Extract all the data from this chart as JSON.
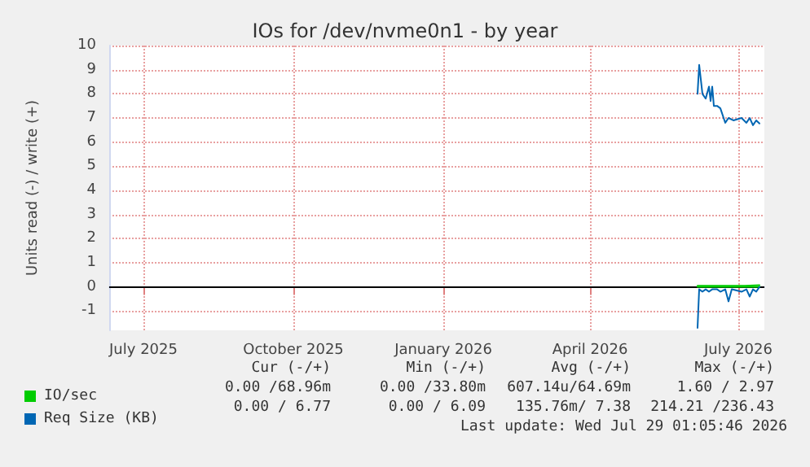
{
  "chart_data": {
    "type": "line",
    "title": "IOs for /dev/nvme0n1 - by year",
    "ylabel": "Units read (-) / write (+)",
    "xlim": [
      "2025-06-10",
      "2026-07-17"
    ],
    "xticks": [
      {
        "value": "2025-07-01",
        "label": "July 2025"
      },
      {
        "value": "2025-10-01",
        "label": "October 2025"
      },
      {
        "value": "2026-01-01",
        "label": "January 2026"
      },
      {
        "value": "2026-04-01",
        "label": "April 2026"
      },
      {
        "value": "2026-07-01",
        "label": "July 2026"
      }
    ],
    "ylim": [
      -1.8,
      10
    ],
    "yticks": [
      -1,
      0,
      1,
      2,
      3,
      4,
      5,
      6,
      7,
      8,
      9,
      10
    ],
    "grid": true,
    "legend": "bottom left",
    "marker": "none",
    "line_style": "solid",
    "ref_lines": [
      {
        "axis": "y",
        "value": 0,
        "color": "#000000"
      }
    ],
    "series": [
      {
        "name": "IO/sec",
        "color": "#00cc00",
        "x": [
          "2026-06-06",
          "2026-06-15",
          "2026-06-25",
          "2026-07-05",
          "2026-07-14"
        ],
        "values": [
          0.05,
          0.05,
          0.05,
          0.05,
          0.07
        ]
      },
      {
        "color": "#00cc00",
        "x": [
          "2026-06-06",
          "2026-06-15",
          "2026-06-25",
          "2026-07-05",
          "2026-07-14"
        ],
        "values": [
          0,
          0,
          0,
          0,
          0
        ]
      },
      {
        "name": "Req Size (KB)",
        "color": "#0066b3",
        "x": [
          "2026-06-06",
          "2026-06-07",
          "2026-06-09",
          "2026-06-11",
          "2026-06-13",
          "2026-06-14",
          "2026-06-15",
          "2026-06-16",
          "2026-06-18",
          "2026-06-20",
          "2026-06-22",
          "2026-06-23",
          "2026-06-25",
          "2026-06-28",
          "2026-07-03",
          "2026-07-06",
          "2026-07-08",
          "2026-07-10",
          "2026-07-12",
          "2026-07-14"
        ],
        "values": [
          8.0,
          9.2,
          8.0,
          7.8,
          8.3,
          7.7,
          8.3,
          7.5,
          7.5,
          7.4,
          7.0,
          6.8,
          7.0,
          6.9,
          7.0,
          6.8,
          7.0,
          6.7,
          6.9,
          6.77
        ]
      },
      {
        "color": "#0066b3",
        "x": [
          "2026-06-06",
          "2026-06-07",
          "2026-06-09",
          "2026-06-11",
          "2026-06-13",
          "2026-06-15",
          "2026-06-18",
          "2026-06-20",
          "2026-06-23",
          "2026-06-25",
          "2026-06-27",
          "2026-07-03",
          "2026-07-06",
          "2026-07-08",
          "2026-07-10",
          "2026-07-12",
          "2026-07-14"
        ],
        "values": [
          -1.7,
          -0.1,
          -0.2,
          -0.1,
          -0.2,
          -0.1,
          -0.1,
          -0.2,
          -0.1,
          -0.6,
          -0.1,
          -0.2,
          -0.1,
          -0.4,
          -0.1,
          -0.2,
          0
        ]
      }
    ],
    "annotations": [
      "Cur (-/+)",
      "Min (-/+)",
      "Avg (-/+)",
      "Max (-/+)",
      "0.00 /68.96m",
      "0.00 /33.80m",
      "607.14u/64.69m",
      "1.60 / 2.97",
      "0.00 / 6.77",
      "0.00 / 6.09",
      "135.76m/ 7.38",
      "214.21 /236.43",
      "Last update: Wed Jul 29 01:05:46 2026"
    ]
  }
}
